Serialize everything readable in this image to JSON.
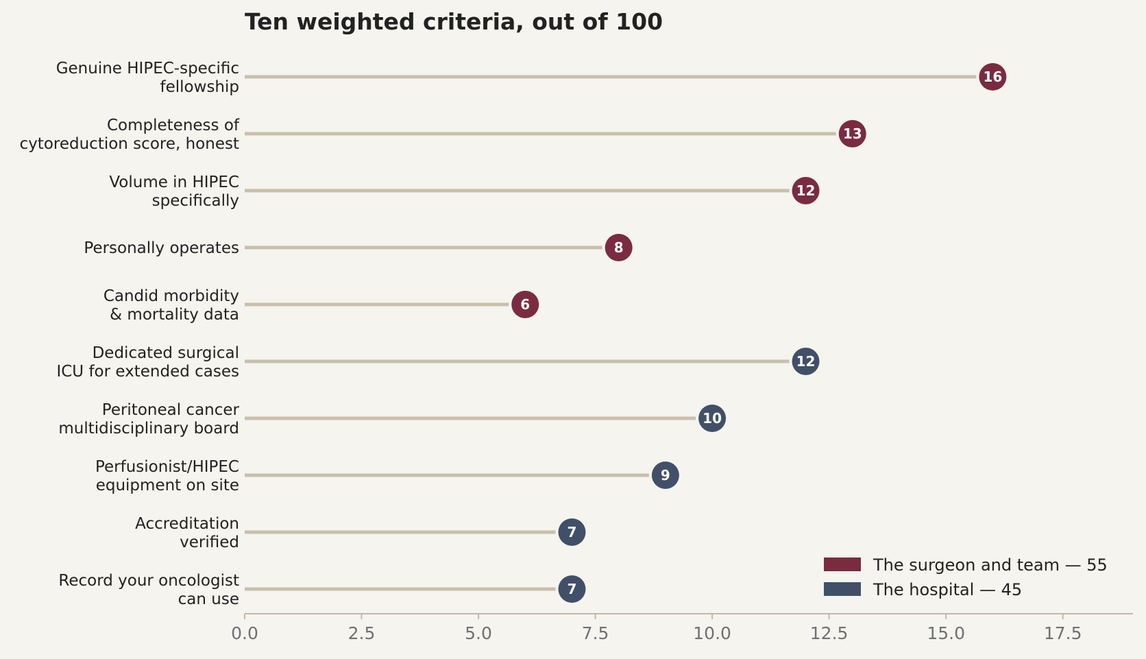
{
  "chart_data": {
    "type": "bar",
    "title": "Ten weighted criteria, out of 100",
    "xlabel": "",
    "ylabel": "",
    "xlim": [
      0,
      19
    ],
    "xticks": [
      "0.0",
      "2.5",
      "5.0",
      "7.5",
      "10.0",
      "12.5",
      "15.0",
      "17.5"
    ],
    "grid": false,
    "legend_position": "bottom-right",
    "categories": [
      [
        "Genuine HIPEC-specific",
        "fellowship"
      ],
      [
        "Completeness of",
        "cytoreduction score, honest"
      ],
      [
        "Volume in HIPEC",
        "specifically"
      ],
      [
        "Personally operates"
      ],
      [
        "Candid morbidity",
        "& mortality data"
      ],
      [
        "Dedicated surgical",
        "ICU for extended cases"
      ],
      [
        "Peritoneal cancer",
        "multidisciplinary board"
      ],
      [
        "Perfusionist/HIPEC",
        "equipment on site"
      ],
      [
        "Accreditation",
        "verified"
      ],
      [
        "Record your oncologist",
        "can use"
      ]
    ],
    "values": [
      16,
      13,
      12,
      8,
      6,
      12,
      10,
      9,
      7,
      7
    ],
    "group": [
      0,
      0,
      0,
      0,
      0,
      1,
      1,
      1,
      1,
      1
    ],
    "series": [
      {
        "name": "The surgeon and team — 55",
        "color": "#7a2b41"
      },
      {
        "name": "The hospital — 45",
        "color": "#415068"
      }
    ],
    "stem_color": "#c8c0ab",
    "axis_color": "#c0b9a4"
  }
}
